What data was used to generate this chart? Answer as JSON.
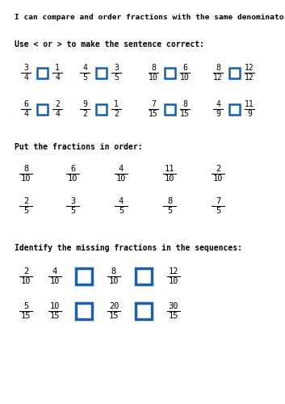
{
  "title": "I can compare and order fractions with the same denominator",
  "bg_color": "#ffffff",
  "box_color": "#1a5fa8",
  "text_color": "#000000",
  "section1_label": "Use < or > to make the sentence correct:",
  "section2_label": "Put the fractions in order:",
  "section3_label": "Identify the missing fractions in the sequences:",
  "compare_pairs": [
    [
      [
        "3",
        "4"
      ],
      [
        "1",
        "4"
      ]
    ],
    [
      [
        "4",
        "5"
      ],
      [
        "3",
        "5"
      ]
    ],
    [
      [
        "8",
        "10"
      ],
      [
        "6",
        "10"
      ]
    ],
    [
      [
        "8",
        "12"
      ],
      [
        "12",
        "12"
      ]
    ],
    [
      [
        "6",
        "4"
      ],
      [
        "2",
        "4"
      ]
    ],
    [
      [
        "9",
        "2"
      ],
      [
        "1",
        "2"
      ]
    ],
    [
      [
        "7",
        "15"
      ],
      [
        "8",
        "15"
      ]
    ],
    [
      [
        "4",
        "9"
      ],
      [
        "11",
        "9"
      ]
    ]
  ],
  "order_rows": [
    [
      [
        "8",
        "10"
      ],
      [
        "6",
        "10"
      ],
      [
        "4",
        "10"
      ],
      [
        "11",
        "10"
      ],
      [
        "2",
        "10"
      ]
    ],
    [
      [
        "2",
        "5"
      ],
      [
        "3",
        "5"
      ],
      [
        "4",
        "5"
      ],
      [
        "8",
        "5"
      ],
      [
        "7",
        "5"
      ]
    ]
  ],
  "sequence_rows": [
    [
      [
        "2",
        "10"
      ],
      [
        "4",
        "10"
      ],
      null,
      [
        "8",
        "10"
      ],
      null,
      [
        "12",
        "10"
      ]
    ],
    [
      [
        "5",
        "15"
      ],
      [
        "10",
        "15"
      ],
      null,
      [
        "20",
        "15"
      ],
      null,
      [
        "30",
        "15"
      ]
    ]
  ]
}
